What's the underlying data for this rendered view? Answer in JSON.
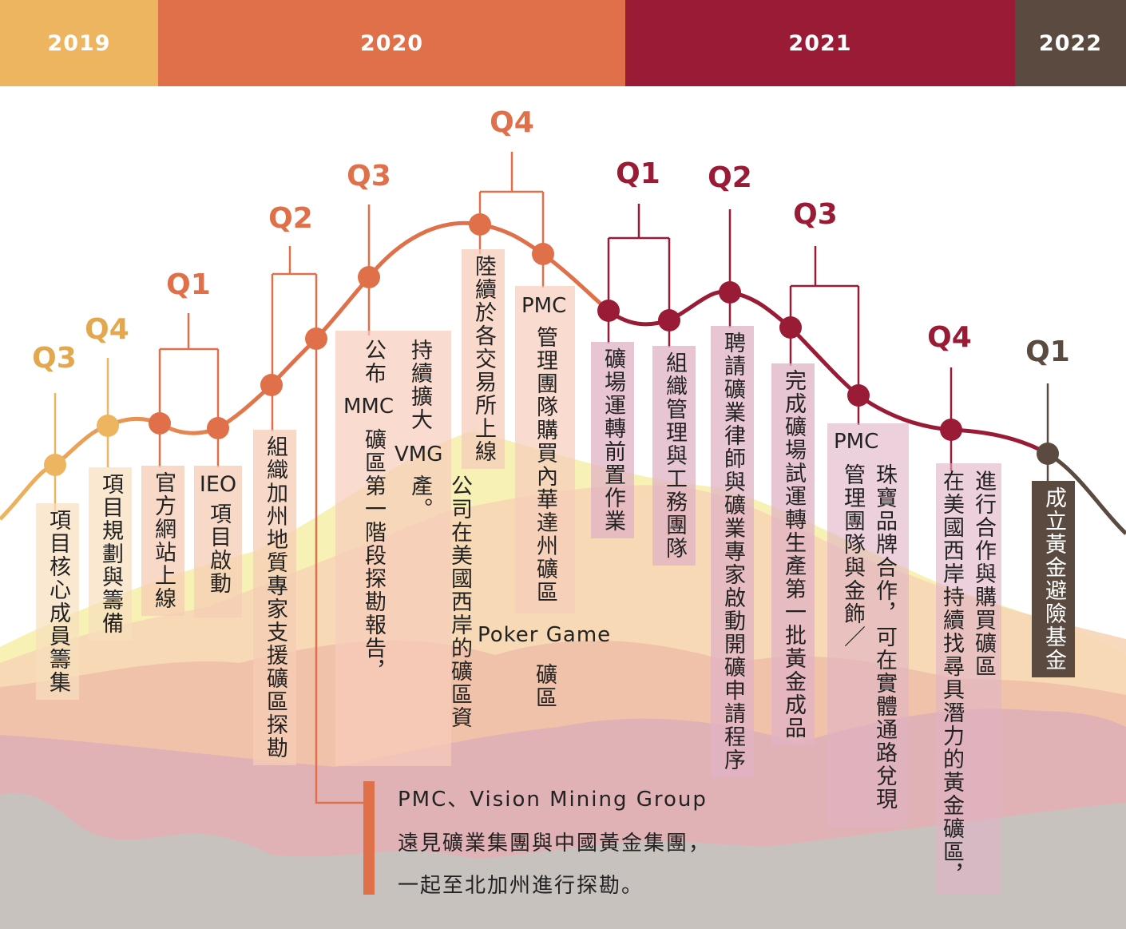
{
  "years": [
    {
      "label": "2019",
      "color": "#edb55f"
    },
    {
      "label": "2020",
      "color": "#df7049"
    },
    {
      "label": "2021",
      "color": "#9a1b36"
    },
    {
      "label": "2022",
      "color": "#5a4a40"
    }
  ],
  "quarters": [
    "Q3",
    "Q4",
    "Q1",
    "Q2",
    "Q3",
    "Q4",
    "Q1",
    "Q2",
    "Q3",
    "Q4",
    "Q1"
  ],
  "events": {
    "e1": "項目核心成員籌集",
    "e2": "項目規劃與籌備",
    "e3": "官方網站上線",
    "e4a": "IEO",
    "e4b": "項目啟動",
    "e5": "組織加州地質專家支援礦區探勘",
    "e6a": "公布",
    "e6b": "MMC",
    "e6c": "礦區第一階段探勘報告，",
    "e7a": "持續擴大",
    "e7b": "VMG",
    "e7c": "公司在美國西岸的礦區資產。",
    "e8": "陸續於各交易所上線",
    "e9a": "PMC",
    "e9b": "管理團隊購買內華達州礦區",
    "e9c": "Poker Game",
    "e9d": "礦區",
    "e10": "礦場運轉前置作業",
    "e11": "組織管理與工務團隊",
    "e12": "聘請礦業律師與礦業專家啟動開礦申請程序",
    "e13": "完成礦場試運轉生產第一批黃金成品",
    "e14a": "PMC",
    "e14b": "管理團隊與金飾／",
    "e14c": "珠寶品牌合作，可在實體通路兌現",
    "e15a": "在美國西岸持續找尋具潛力的黃金礦區，",
    "e15b": "進行合作與購買礦區",
    "e16": "成立黃金避險基金"
  },
  "partner": {
    "line1": "PMC、Vision Mining Group",
    "line2": "遠見礦業集團與中國黃金集團，",
    "line3": "一起至北加州進行探勘。"
  }
}
